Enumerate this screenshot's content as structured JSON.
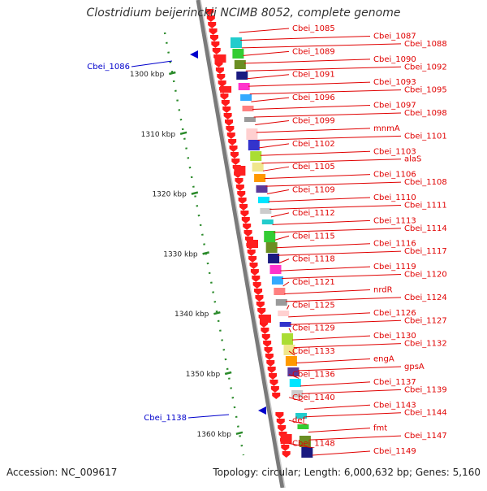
{
  "title": "Clostridium beijerinckii NCIMB 8052, complete genome",
  "accession_text": "Accession: NC_009617",
  "topology_text": "Topology: circular; Length: 6,000,632 bp; Genes: 5,160",
  "colors": {
    "gene_label": "#e00000",
    "highlight_label": "#0000cc",
    "ruler": "#2a8a2a",
    "backbone": "#7a7a7a"
  },
  "ruler_ticks": [
    {
      "label": "1300 kbp",
      "kbp": 1300
    },
    {
      "label": "1310 kbp",
      "kbp": 1310
    },
    {
      "label": "1320 kbp",
      "kbp": 1320
    },
    {
      "label": "1330 kbp",
      "kbp": 1330
    },
    {
      "label": "1340 kbp",
      "kbp": 1340
    },
    {
      "label": "1350 kbp",
      "kbp": 1350
    },
    {
      "label": "1360 kbp",
      "kbp": 1360
    }
  ],
  "highlighted_genes": [
    "Cbei_1086",
    "Cbei_1138"
  ],
  "gene_labels": [
    "Cbei_1085",
    "Cbei_1087",
    "Cbei_1088",
    "Cbei_1089",
    "Cbei_1090",
    "Cbei_1092",
    "Cbei_1091",
    "Cbei_1093",
    "Cbei_1095",
    "Cbei_1096",
    "Cbei_1097",
    "Cbei_1098",
    "Cbei_1099",
    "mnmA",
    "Cbei_1101",
    "Cbei_1102",
    "Cbei_1103",
    "alaS",
    "Cbei_1105",
    "Cbei_1106",
    "Cbei_1108",
    "Cbei_1109",
    "Cbei_1110",
    "Cbei_1111",
    "Cbei_1112",
    "Cbei_1113",
    "Cbei_1114",
    "Cbei_1115",
    "Cbei_1116",
    "Cbei_1117",
    "Cbei_1118",
    "Cbei_1119",
    "Cbei_1120",
    "Cbei_1121",
    "nrdR",
    "Cbei_1124",
    "Cbei_1125",
    "Cbei_1126",
    "Cbei_1127",
    "Cbei_1129",
    "Cbei_1130",
    "Cbei_1132",
    "Cbei_1133",
    "engA",
    "gpsA",
    "Cbei_1136",
    "Cbei_1137",
    "Cbei_1139",
    "Cbei_1140",
    "Cbei_1143",
    "Cbei_1144",
    "def",
    "fmt",
    "Cbei_1147",
    "Cbei_1148",
    "Cbei_1149"
  ]
}
